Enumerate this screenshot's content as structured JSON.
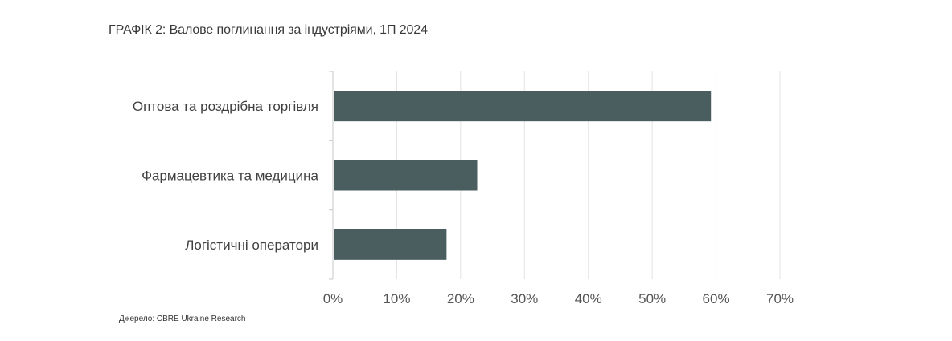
{
  "title": "ГРАФІК 2: Валове поглинання за індустріями,  1П 2024",
  "source": "Джерело: CBRE Ukraine Research",
  "colors": {
    "bar": "#4a5e60",
    "grid": "#e3e3e3",
    "axis": "#c8c8c8",
    "label": "#404040",
    "tick": "#555555"
  },
  "chart_data": {
    "type": "bar",
    "orientation": "horizontal",
    "categories": [
      "Оптова та роздрібна торгівля",
      "Фармацевтика та медицина",
      "Логістичні оператори"
    ],
    "values": [
      59.2,
      22.6,
      17.8
    ],
    "unit": "%",
    "xlim": [
      0,
      70
    ],
    "x_ticks": [
      0,
      10,
      20,
      30,
      40,
      50,
      60,
      70
    ],
    "x_tick_labels": [
      "0%",
      "10%",
      "20%",
      "30%",
      "40%",
      "50%",
      "60%",
      "70%"
    ],
    "grid": true,
    "legend": "none"
  }
}
